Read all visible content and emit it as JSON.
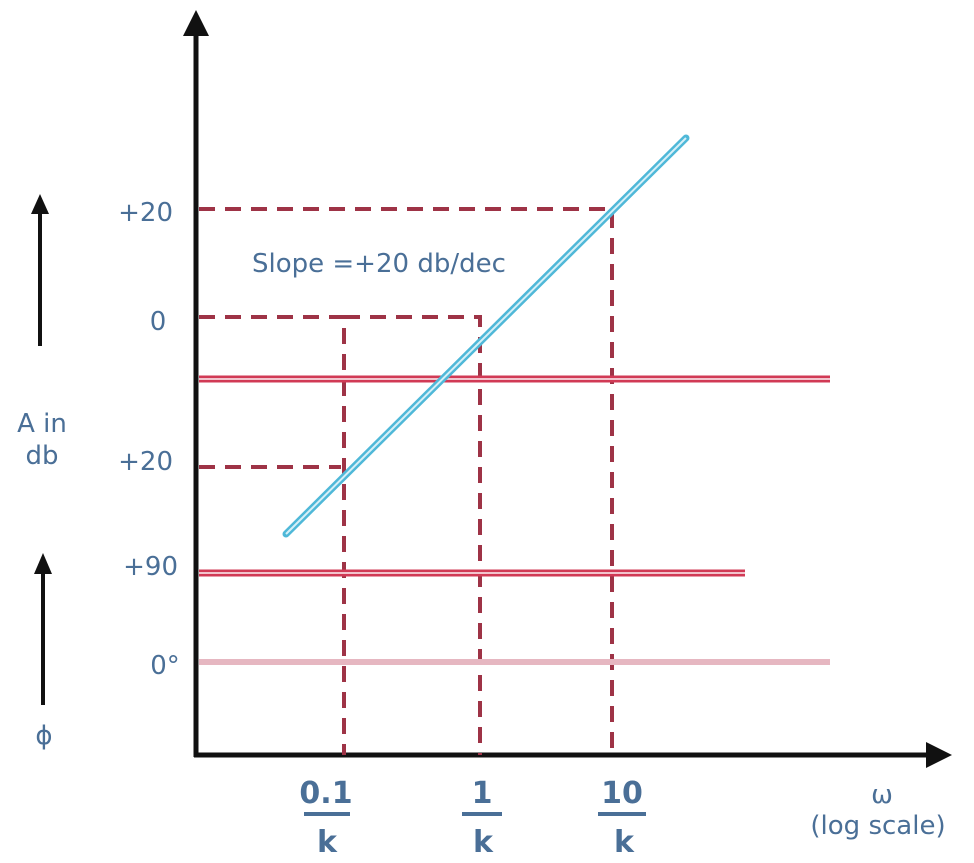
{
  "labels": {
    "y_tick_plus20_top": "+20",
    "y_tick_0": "0",
    "y_tick_plus20_bottom": "+20",
    "y_tick_plus90": "+90",
    "y_tick_0deg": "0°",
    "amplitude_axis_line1": "A in",
    "amplitude_axis_line2": "db",
    "phase_axis": "ϕ",
    "slope": "Slope =+20 db/dec",
    "x_tick_1_num": "0.1",
    "x_tick_2_num": "1",
    "x_tick_3_num": "10",
    "x_tick_den": "k",
    "x_axis_symbol": "ω",
    "x_axis_scale": "(log scale)"
  },
  "colors": {
    "axis": "#111111",
    "text": "#4a6f97",
    "guide": "#9e3346",
    "asymptote": "#d13a55",
    "slope_line": "#4fb8d8",
    "zero_phase_line": "#e6b7c1"
  }
}
